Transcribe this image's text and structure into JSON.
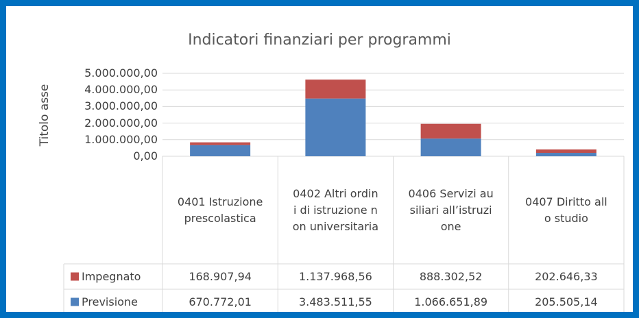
{
  "chart_data": {
    "type": "bar",
    "stacked": true,
    "title": "Indicatori finanziari per programmi",
    "y_label": "Titolo asse",
    "categories": [
      "0401 Istruzione prescolastica",
      "0402 Altri ordini di istruzione non universitaria",
      "0406 Servizi ausiliari all’istruzione",
      "0407 Diritto allo studio"
    ],
    "series": [
      {
        "name": "Previsione",
        "color": "#4f81bd",
        "values": [
          670772.01,
          3483511.55,
          1066651.89,
          205505.14
        ],
        "value_labels": [
          "670.772,01",
          "3.483.511,55",
          "1.066.651,89",
          "205.505,14"
        ]
      },
      {
        "name": "Impegnato",
        "color": "#c0504d",
        "values": [
          168907.94,
          1137968.56,
          888302.52,
          202646.33
        ],
        "value_labels": [
          "168.907,94",
          "1.137.968,56",
          "888.302,52",
          "202.646,33"
        ]
      }
    ],
    "ylim": [
      0,
      5000000
    ],
    "yticks": [
      {
        "value": 0,
        "label": "0,00"
      },
      {
        "value": 1000000,
        "label": "1.000.000,00"
      },
      {
        "value": 2000000,
        "label": "2.000.000,00"
      },
      {
        "value": 3000000,
        "label": "3.000.000,00"
      },
      {
        "value": 4000000,
        "label": "4.000.000,00"
      },
      {
        "value": 5000000,
        "label": "5.000.000,00"
      }
    ],
    "grid": true
  }
}
